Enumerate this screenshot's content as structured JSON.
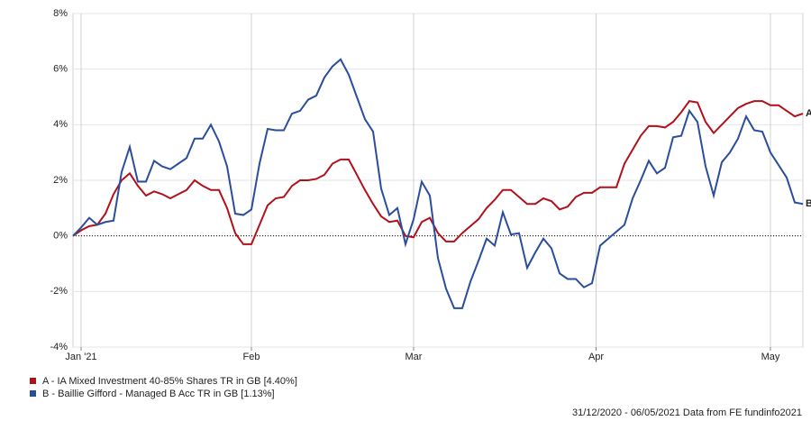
{
  "chart_data": {
    "type": "line",
    "xlim": [
      0,
      90
    ],
    "xticks": [
      {
        "value": 1,
        "label": "Jan '21"
      },
      {
        "value": 22,
        "label": "Feb"
      },
      {
        "value": 42,
        "label": "Mar"
      },
      {
        "value": 64.5,
        "label": "Apr"
      },
      {
        "value": 86,
        "label": "May"
      }
    ],
    "ylim": [
      -4,
      8
    ],
    "yticks": [
      {
        "value": -4,
        "label": "-4%"
      },
      {
        "value": -2,
        "label": "-2%"
      },
      {
        "value": 0,
        "label": "0%"
      },
      {
        "value": 2,
        "label": "2%"
      },
      {
        "value": 4,
        "label": "4%"
      },
      {
        "value": 6,
        "label": "6%"
      },
      {
        "value": 8,
        "label": "8%"
      }
    ],
    "grid": true,
    "series": [
      {
        "name": "A - IA Mixed Investment 40-85% Shares TR in GB [4.40%]",
        "marker": "A",
        "color": "#b0111b",
        "values": [
          0,
          0.2,
          0.35,
          0.4,
          0.8,
          1.5,
          2.0,
          2.25,
          1.8,
          1.45,
          1.6,
          1.5,
          1.35,
          1.5,
          1.65,
          2.0,
          1.8,
          1.65,
          1.65,
          1.0,
          0.1,
          -0.3,
          -0.3,
          0.4,
          1.1,
          1.35,
          1.4,
          1.8,
          2.0,
          2.0,
          2.05,
          2.2,
          2.6,
          2.75,
          2.75,
          2.2,
          1.65,
          1.15,
          0.7,
          0.5,
          0.55,
          0.0,
          -0.05,
          0.5,
          0.65,
          0.1,
          -0.2,
          -0.2,
          0.1,
          0.35,
          0.6,
          1.0,
          1.3,
          1.65,
          1.65,
          1.4,
          1.15,
          1.15,
          1.35,
          1.25,
          0.95,
          1.05,
          1.4,
          1.55,
          1.55,
          1.75,
          1.75,
          1.75,
          2.6,
          3.1,
          3.6,
          3.95,
          3.95,
          3.9,
          4.1,
          4.45,
          4.85,
          4.8,
          4.1,
          3.7,
          4.0,
          4.3,
          4.6,
          4.75,
          4.85,
          4.85,
          4.7,
          4.7,
          4.5,
          4.3,
          4.4
        ]
      },
      {
        "name": "B - Baillie Gifford - Managed B Acc TR in GB [1.13%]",
        "marker": "B",
        "color": "#2a4d9c",
        "values": [
          0,
          0.3,
          0.65,
          0.4,
          0.5,
          0.55,
          2.3,
          3.2,
          1.95,
          1.95,
          2.7,
          2.5,
          2.4,
          2.6,
          2.8,
          3.5,
          3.5,
          4.0,
          3.4,
          2.5,
          0.8,
          0.75,
          0.95,
          2.6,
          3.85,
          3.8,
          3.8,
          4.4,
          4.5,
          4.9,
          5.05,
          5.7,
          6.1,
          6.35,
          5.8,
          5.0,
          4.2,
          3.75,
          1.7,
          0.75,
          1.0,
          -0.3,
          0.6,
          1.95,
          1.45,
          -0.8,
          -1.9,
          -2.6,
          -2.6,
          -1.65,
          -0.9,
          -0.1,
          -0.35,
          0.85,
          0.05,
          0.1,
          -1.15,
          -0.6,
          -0.1,
          -0.45,
          -1.35,
          -1.55,
          -1.55,
          -1.85,
          -1.7,
          -0.35,
          -0.1,
          0.15,
          0.4,
          1.35,
          2.0,
          2.7,
          2.25,
          2.45,
          3.55,
          3.6,
          4.5,
          4.1,
          2.5,
          1.45,
          2.65,
          3.0,
          3.5,
          4.3,
          3.8,
          3.75,
          3.0,
          2.55,
          2.1,
          1.2,
          1.15
        ]
      }
    ],
    "footnote": "31/12/2020 - 06/05/2021 Data from FE fundinfo2021"
  }
}
